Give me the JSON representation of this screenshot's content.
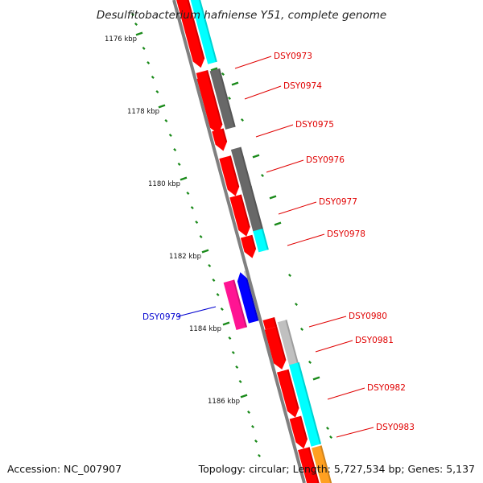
{
  "title": "Desulfitobacterium hafniense Y51, complete genome",
  "footer": {
    "accession": "Accession: NC_007907",
    "summary": "Topology: circular; Length: 5,727,534 bp; Genes: 5,137"
  },
  "colors": {
    "backbone": "#808080",
    "tick": "#1a8a1a",
    "forward_label": "#e00000",
    "reverse_label": "#0000d0",
    "red": "#ff0000",
    "cyan": "#00ffff",
    "gray": "#686868",
    "lightgray": "#c0c0c0",
    "magenta": "#ff1493",
    "blue": "#0000ff",
    "orange": "#ffa020"
  },
  "kbp_labels": [
    "1176 kbp",
    "1178 kbp",
    "1180 kbp",
    "1182 kbp",
    "1184 kbp",
    "1186 kbp"
  ],
  "genes": [
    {
      "name": "DSY0973",
      "strand": "forward"
    },
    {
      "name": "DSY0974",
      "strand": "forward"
    },
    {
      "name": "DSY0975",
      "strand": "forward"
    },
    {
      "name": "DSY0976",
      "strand": "forward"
    },
    {
      "name": "DSY0977",
      "strand": "forward"
    },
    {
      "name": "DSY0978",
      "strand": "forward"
    },
    {
      "name": "DSY0979",
      "strand": "reverse"
    },
    {
      "name": "DSY0980",
      "strand": "forward"
    },
    {
      "name": "DSY0981",
      "strand": "forward"
    },
    {
      "name": "DSY0982",
      "strand": "forward"
    },
    {
      "name": "DSY0983",
      "strand": "forward"
    }
  ]
}
